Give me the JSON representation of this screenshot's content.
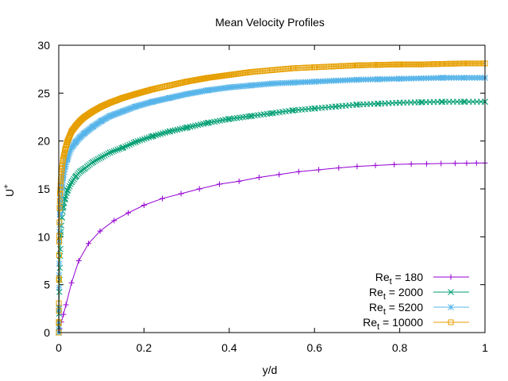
{
  "chart_data": {
    "type": "line",
    "title": "Mean Velocity Profiles",
    "xlabel": "y/d",
    "ylabel_main": "U",
    "ylabel_sup": "+",
    "xlim": [
      0,
      1
    ],
    "ylim": [
      0,
      30
    ],
    "xticks": [
      {
        "v": 0,
        "label": "0"
      },
      {
        "v": 0.2,
        "label": "0.2"
      },
      {
        "v": 0.4,
        "label": "0.4"
      },
      {
        "v": 0.6,
        "label": "0.6"
      },
      {
        "v": 0.8,
        "label": "0.8"
      },
      {
        "v": 1,
        "label": "1"
      }
    ],
    "yticks": [
      {
        "v": 0,
        "label": "0"
      },
      {
        "v": 5,
        "label": "5"
      },
      {
        "v": 10,
        "label": "10"
      },
      {
        "v": 15,
        "label": "15"
      },
      {
        "v": 20,
        "label": "20"
      },
      {
        "v": 25,
        "label": "25"
      },
      {
        "v": 30,
        "label": "30"
      }
    ],
    "grid": false,
    "legend_position": "bottom-right",
    "series": [
      {
        "label_base": "Re",
        "label_sub": "t",
        "label_rest": " = 180",
        "color": "#9400d3",
        "marker": "plus",
        "x": [
          0.0,
          0.002,
          0.006,
          0.011,
          0.017,
          0.03,
          0.047,
          0.07,
          0.097,
          0.13,
          0.163,
          0.2,
          0.243,
          0.287,
          0.33,
          0.377,
          0.423,
          0.47,
          0.517,
          0.563,
          0.61,
          0.657,
          0.7,
          0.743,
          0.787,
          0.827,
          0.863,
          0.897,
          0.93,
          0.957,
          0.98,
          1.0
        ],
        "y": [
          0.0,
          0.4,
          1.1,
          1.9,
          2.9,
          5.2,
          7.5,
          9.3,
          10.6,
          11.7,
          12.5,
          13.3,
          14.0,
          14.5,
          15.0,
          15.5,
          15.8,
          16.2,
          16.5,
          16.8,
          17.0,
          17.2,
          17.35,
          17.45,
          17.55,
          17.6,
          17.62,
          17.65,
          17.67,
          17.68,
          17.7,
          17.7
        ]
      },
      {
        "label_base": "Re",
        "label_sub": "t",
        "label_rest": " = 2000",
        "color": "#009e73",
        "marker": "cross",
        "x": [
          0.0,
          0.0005,
          0.001,
          0.002,
          0.003,
          0.005,
          0.0075,
          0.01,
          0.015,
          0.02,
          0.03,
          0.04,
          0.05,
          0.06,
          0.08,
          0.1,
          0.12,
          0.15,
          0.18,
          0.22,
          0.26,
          0.3,
          0.35,
          0.4,
          0.45,
          0.5,
          0.55,
          0.6,
          0.65,
          0.7,
          0.75,
          0.8,
          0.85,
          0.9,
          0.95,
          1.0
        ],
        "y": [
          0.0,
          1.0,
          2.5,
          5.5,
          8.0,
          10.5,
          12.0,
          13.0,
          14.0,
          14.8,
          15.7,
          16.3,
          16.8,
          17.1,
          17.8,
          18.3,
          18.8,
          19.3,
          19.9,
          20.5,
          21.0,
          21.4,
          21.9,
          22.3,
          22.6,
          22.9,
          23.2,
          23.4,
          23.6,
          23.8,
          23.9,
          24.0,
          24.05,
          24.1,
          24.1,
          24.1
        ]
      },
      {
        "label_base": "Re",
        "label_sub": "t",
        "label_rest": " = 5200",
        "color": "#56b4e9",
        "marker": "star",
        "x": [
          0.0,
          0.0002,
          0.0005,
          0.001,
          0.002,
          0.003,
          0.005,
          0.0075,
          0.01,
          0.015,
          0.02,
          0.03,
          0.04,
          0.05,
          0.06,
          0.08,
          0.1,
          0.12,
          0.15,
          0.18,
          0.22,
          0.26,
          0.3,
          0.35,
          0.4,
          0.45,
          0.5,
          0.55,
          0.6,
          0.65,
          0.7,
          0.75,
          0.8,
          0.85,
          0.9,
          0.95,
          1.0
        ],
        "y": [
          0.0,
          1.1,
          2.7,
          6.0,
          10.5,
          12.3,
          14.0,
          15.2,
          16.1,
          17.3,
          18.1,
          19.3,
          19.9,
          20.4,
          20.8,
          21.5,
          22.1,
          22.6,
          23.1,
          23.6,
          24.1,
          24.5,
          24.9,
          25.3,
          25.6,
          25.8,
          26.0,
          26.1,
          26.2,
          26.3,
          26.4,
          26.45,
          26.5,
          26.55,
          26.6,
          26.6,
          26.6
        ]
      },
      {
        "label_base": "Re",
        "label_sub": "t",
        "label_rest": " = 10000",
        "color": "#e69f00",
        "marker": "square",
        "x": [
          0.0,
          0.0001,
          0.0002,
          0.0005,
          0.001,
          0.002,
          0.003,
          0.005,
          0.0075,
          0.01,
          0.015,
          0.02,
          0.03,
          0.04,
          0.05,
          0.06,
          0.08,
          0.1,
          0.12,
          0.15,
          0.18,
          0.22,
          0.26,
          0.3,
          0.35,
          0.4,
          0.45,
          0.5,
          0.55,
          0.6,
          0.65,
          0.7,
          0.75,
          0.8,
          0.85,
          0.9,
          0.95,
          1.0
        ],
        "y": [
          0.0,
          1.1,
          2.3,
          5.5,
          9.5,
          13.0,
          14.5,
          16.0,
          17.1,
          18.0,
          19.1,
          19.9,
          21.0,
          21.6,
          22.1,
          22.5,
          23.1,
          23.6,
          24.0,
          24.5,
          24.9,
          25.4,
          25.8,
          26.2,
          26.6,
          26.9,
          27.2,
          27.4,
          27.6,
          27.7,
          27.8,
          27.9,
          27.95,
          28.0,
          28.0,
          28.05,
          28.1,
          28.1
        ]
      }
    ]
  }
}
